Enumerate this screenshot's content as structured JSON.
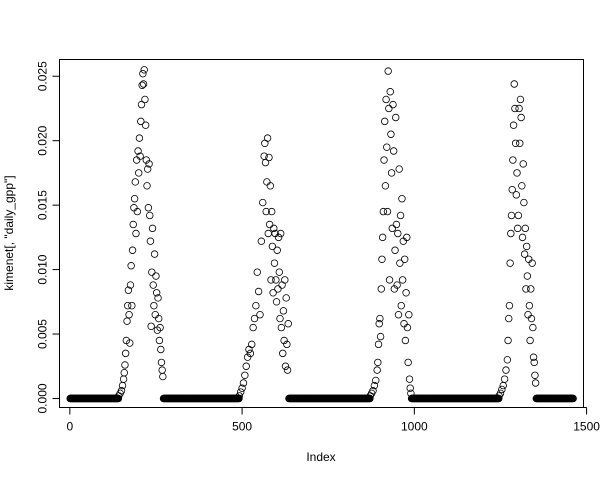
{
  "chart_data": {
    "type": "scatter",
    "title": "",
    "xlabel": "Index",
    "ylabel": "kimenet[, \"daily_gpp\"]",
    "xlim": [
      -30,
      1491
    ],
    "ylim": [
      -0.0007,
      0.0263
    ],
    "xticks": [
      "0",
      "500",
      "1000",
      "1500"
    ],
    "yticks": [
      "0.000",
      "0.005",
      "0.010",
      "0.015",
      "0.020",
      "0.025"
    ],
    "grid": false,
    "marker": "open-circle",
    "zero_value_index_ranges": [
      [
        1,
        141
      ],
      [
        272,
        491
      ],
      [
        636,
        871
      ],
      [
        992,
        1245
      ],
      [
        1354,
        1461
      ]
    ],
    "points": [
      [
        142,
        0.0002
      ],
      [
        146,
        0.0004
      ],
      [
        150,
        0.0006
      ],
      [
        153,
        0.001
      ],
      [
        156,
        0.0015
      ],
      [
        158,
        0.002
      ],
      [
        160,
        0.0026
      ],
      [
        162,
        0.0035
      ],
      [
        164,
        0.0045
      ],
      [
        166,
        0.006
      ],
      [
        168,
        0.0072
      ],
      [
        170,
        0.0084
      ],
      [
        172,
        0.0065
      ],
      [
        174,
        0.0043
      ],
      [
        176,
        0.0088
      ],
      [
        178,
        0.0103
      ],
      [
        180,
        0.0072
      ],
      [
        182,
        0.0115
      ],
      [
        184,
        0.0135
      ],
      [
        186,
        0.0148
      ],
      [
        188,
        0.0155
      ],
      [
        190,
        0.0168
      ],
      [
        192,
        0.0128
      ],
      [
        194,
        0.0185
      ],
      [
        196,
        0.0145
      ],
      [
        198,
        0.0192
      ],
      [
        200,
        0.0175
      ],
      [
        202,
        0.0202
      ],
      [
        204,
        0.0188
      ],
      [
        206,
        0.0215
      ],
      [
        208,
        0.0228
      ],
      [
        210,
        0.0243
      ],
      [
        212,
        0.0252
      ],
      [
        214,
        0.0244
      ],
      [
        216,
        0.0255
      ],
      [
        218,
        0.0232
      ],
      [
        220,
        0.0212
      ],
      [
        222,
        0.0185
      ],
      [
        224,
        0.0165
      ],
      [
        226,
        0.0178
      ],
      [
        228,
        0.0148
      ],
      [
        230,
        0.0182
      ],
      [
        232,
        0.0142
      ],
      [
        234,
        0.0122
      ],
      [
        236,
        0.0056
      ],
      [
        238,
        0.0098
      ],
      [
        240,
        0.0132
      ],
      [
        242,
        0.0088
      ],
      [
        244,
        0.0072
      ],
      [
        246,
        0.0112
      ],
      [
        248,
        0.0065
      ],
      [
        250,
        0.0095
      ],
      [
        252,
        0.0082
      ],
      [
        254,
        0.0053
      ],
      [
        256,
        0.0078
      ],
      [
        258,
        0.0062
      ],
      [
        260,
        0.0045
      ],
      [
        262,
        0.0055
      ],
      [
        264,
        0.0038
      ],
      [
        266,
        0.0028
      ],
      [
        268,
        0.0022
      ],
      [
        270,
        0.0017
      ],
      [
        492,
        0.0002
      ],
      [
        496,
        0.0005
      ],
      [
        500,
        0.0008
      ],
      [
        504,
        0.0012
      ],
      [
        508,
        0.0018
      ],
      [
        512,
        0.0025
      ],
      [
        516,
        0.0032
      ],
      [
        520,
        0.0038
      ],
      [
        524,
        0.0035
      ],
      [
        528,
        0.0042
      ],
      [
        532,
        0.0055
      ],
      [
        536,
        0.0062
      ],
      [
        540,
        0.0072
      ],
      [
        544,
        0.0098
      ],
      [
        548,
        0.0083
      ],
      [
        552,
        0.0065
      ],
      [
        556,
        0.0122
      ],
      [
        560,
        0.0152
      ],
      [
        564,
        0.0188
      ],
      [
        566,
        0.0198
      ],
      [
        568,
        0.0183
      ],
      [
        570,
        0.0145
      ],
      [
        572,
        0.0168
      ],
      [
        574,
        0.0202
      ],
      [
        576,
        0.0128
      ],
      [
        578,
        0.0187
      ],
      [
        580,
        0.0135
      ],
      [
        582,
        0.0165
      ],
      [
        584,
        0.0092
      ],
      [
        586,
        0.0145
      ],
      [
        588,
        0.0118
      ],
      [
        590,
        0.0082
      ],
      [
        592,
        0.0132
      ],
      [
        594,
        0.0105
      ],
      [
        596,
        0.0128
      ],
      [
        598,
        0.0092
      ],
      [
        600,
        0.0075
      ],
      [
        602,
        0.0115
      ],
      [
        604,
        0.0085
      ],
      [
        606,
        0.0125
      ],
      [
        608,
        0.0098
      ],
      [
        610,
        0.0062
      ],
      [
        612,
        0.0128
      ],
      [
        614,
        0.0055
      ],
      [
        616,
        0.0088
      ],
      [
        618,
        0.0035
      ],
      [
        620,
        0.0068
      ],
      [
        622,
        0.0045
      ],
      [
        624,
        0.0092
      ],
      [
        626,
        0.0025
      ],
      [
        628,
        0.0078
      ],
      [
        630,
        0.0042
      ],
      [
        632,
        0.0022
      ],
      [
        634,
        0.0058
      ],
      [
        872,
        0.0002
      ],
      [
        876,
        0.0004
      ],
      [
        880,
        0.0006
      ],
      [
        884,
        0.001
      ],
      [
        888,
        0.0014
      ],
      [
        892,
        0.0022
      ],
      [
        894,
        0.0028
      ],
      [
        896,
        0.0042
      ],
      [
        898,
        0.0058
      ],
      [
        900,
        0.0062
      ],
      [
        902,
        0.0048
      ],
      [
        904,
        0.0085
      ],
      [
        906,
        0.0108
      ],
      [
        908,
        0.0125
      ],
      [
        910,
        0.0145
      ],
      [
        912,
        0.0185
      ],
      [
        914,
        0.0215
      ],
      [
        916,
        0.0165
      ],
      [
        918,
        0.0232
      ],
      [
        920,
        0.0195
      ],
      [
        922,
        0.0145
      ],
      [
        924,
        0.0254
      ],
      [
        926,
        0.0225
      ],
      [
        928,
        0.0092
      ],
      [
        930,
        0.0238
      ],
      [
        932,
        0.0205
      ],
      [
        934,
        0.0175
      ],
      [
        936,
        0.0132
      ],
      [
        938,
        0.0228
      ],
      [
        940,
        0.0192
      ],
      [
        942,
        0.0085
      ],
      [
        944,
        0.0115
      ],
      [
        946,
        0.0218
      ],
      [
        948,
        0.0135
      ],
      [
        950,
        0.0088
      ],
      [
        952,
        0.0128
      ],
      [
        954,
        0.0065
      ],
      [
        956,
        0.0178
      ],
      [
        958,
        0.0105
      ],
      [
        960,
        0.0142
      ],
      [
        962,
        0.0072
      ],
      [
        964,
        0.0155
      ],
      [
        966,
        0.0092
      ],
      [
        968,
        0.0122
      ],
      [
        970,
        0.0058
      ],
      [
        972,
        0.0108
      ],
      [
        974,
        0.0045
      ],
      [
        976,
        0.0082
      ],
      [
        978,
        0.0125
      ],
      [
        980,
        0.0055
      ],
      [
        982,
        0.0028
      ],
      [
        984,
        0.0065
      ],
      [
        986,
        0.0015
      ],
      [
        988,
        0.0008
      ],
      [
        990,
        0.0004
      ],
      [
        1246,
        0.0002
      ],
      [
        1250,
        0.0004
      ],
      [
        1254,
        0.0007
      ],
      [
        1258,
        0.001
      ],
      [
        1262,
        0.0015
      ],
      [
        1266,
        0.0022
      ],
      [
        1270,
        0.003
      ],
      [
        1272,
        0.0045
      ],
      [
        1274,
        0.0062
      ],
      [
        1276,
        0.0072
      ],
      [
        1278,
        0.0105
      ],
      [
        1280,
        0.0128
      ],
      [
        1282,
        0.0142
      ],
      [
        1284,
        0.0162
      ],
      [
        1286,
        0.0185
      ],
      [
        1288,
        0.0212
      ],
      [
        1290,
        0.0244
      ],
      [
        1292,
        0.0225
      ],
      [
        1294,
        0.0198
      ],
      [
        1296,
        0.0158
      ],
      [
        1298,
        0.0175
      ],
      [
        1300,
        0.0132
      ],
      [
        1302,
        0.0142
      ],
      [
        1304,
        0.0225
      ],
      [
        1306,
        0.0198
      ],
      [
        1308,
        0.0232
      ],
      [
        1310,
        0.0218
      ],
      [
        1312,
        0.0165
      ],
      [
        1314,
        0.0125
      ],
      [
        1316,
        0.0182
      ],
      [
        1318,
        0.0152
      ],
      [
        1320,
        0.0112
      ],
      [
        1322,
        0.0132
      ],
      [
        1324,
        0.0085
      ],
      [
        1326,
        0.0118
      ],
      [
        1328,
        0.0095
      ],
      [
        1330,
        0.0065
      ],
      [
        1332,
        0.0108
      ],
      [
        1334,
        0.0072
      ],
      [
        1336,
        0.0045
      ],
      [
        1338,
        0.0085
      ],
      [
        1340,
        0.0062
      ],
      [
        1342,
        0.0105
      ],
      [
        1344,
        0.0055
      ],
      [
        1346,
        0.0032
      ],
      [
        1348,
        0.0028
      ],
      [
        1350,
        0.0018
      ],
      [
        1352,
        0.0012
      ]
    ]
  }
}
